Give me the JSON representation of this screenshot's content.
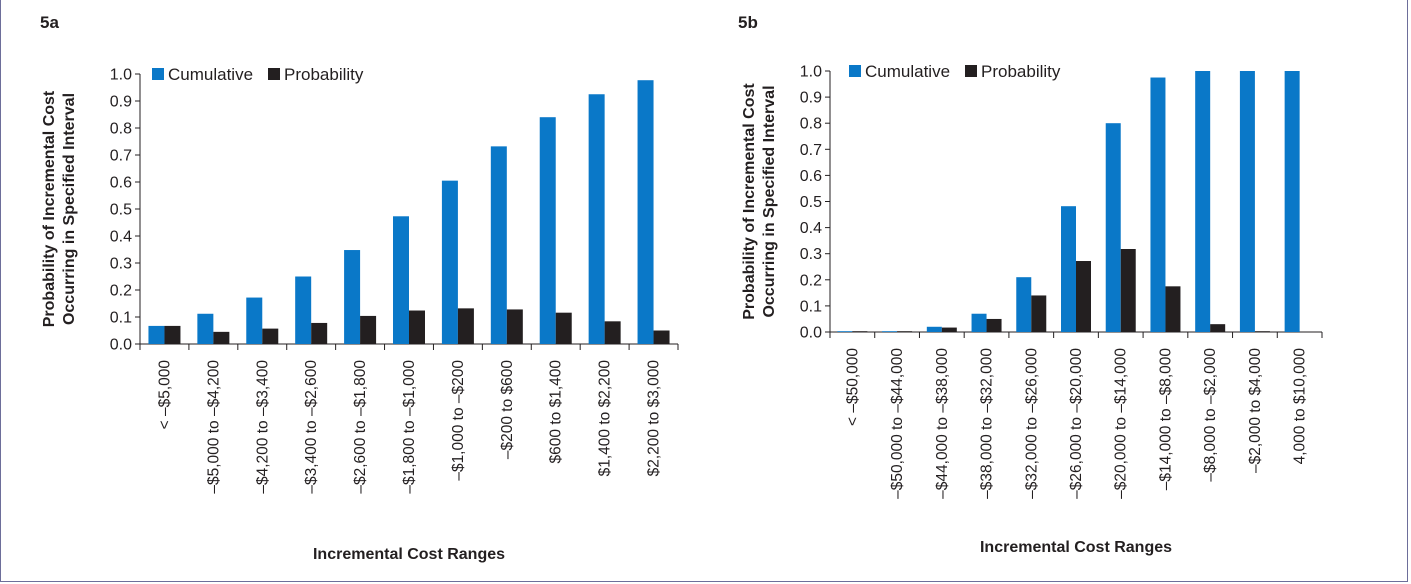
{
  "colors": {
    "cumulative": "#0a78c8",
    "probability": "#231f20",
    "axis": "#231f20"
  },
  "chart_data": [
    {
      "type": "bar",
      "panel_label": "5a",
      "title": "",
      "xlabel": "Incremental Cost Ranges",
      "ylabel_line1": "Probability of Incremental Cost",
      "ylabel_line2": "Occurring in Specified Interval",
      "ylim": [
        0,
        1.0
      ],
      "yticks": [
        "0.0",
        "0.1",
        "0.2",
        "0.3",
        "0.4",
        "0.5",
        "0.6",
        "0.7",
        "0.8",
        "0.9",
        "1.0"
      ],
      "legend_position": "top-left",
      "categories": [
        "< –$5,000",
        "–$5,000 to –$4,200",
        "–$4,200 to –$3,400",
        "–$3,400 to –$2,600",
        "–$2,600 to –$1,800",
        "–$1,800 to –$1,000",
        "–$1,000 to –$200",
        "–$200 to $600",
        "$600 to $1,400",
        "$1,400 to $2,200",
        "$2,200 to $3,000"
      ],
      "series": [
        {
          "name": "Cumulative",
          "values": [
            0.067,
            0.112,
            0.172,
            0.25,
            0.348,
            0.473,
            0.605,
            0.732,
            0.84,
            0.925,
            0.977
          ]
        },
        {
          "name": "Probability",
          "values": [
            0.067,
            0.045,
            0.057,
            0.078,
            0.104,
            0.124,
            0.132,
            0.128,
            0.116,
            0.084,
            0.05
          ]
        }
      ]
    },
    {
      "type": "bar",
      "panel_label": "5b",
      "title": "",
      "xlabel": "Incremental Cost Ranges",
      "ylabel_line1": "Probability of Incremental Cost",
      "ylabel_line2": "Occurring in Specified Interval",
      "ylim": [
        0,
        1.0
      ],
      "yticks": [
        "0.0",
        "0.1",
        "0.2",
        "0.3",
        "0.4",
        "0.5",
        "0.6",
        "0.7",
        "0.8",
        "0.9",
        "1.0"
      ],
      "legend_position": "top-left",
      "categories": [
        "< –$50,000",
        "–$50,000 to –$44,000",
        "–$44,000 to –$38,000",
        "–$38,000 to –$32,000",
        "–$32,000 to –$26,000",
        "–$26,000 to –$20,000",
        "–$20,000 to –$14,000",
        "–$14,000 to –$8,000",
        "–$8,000 to –$2,000",
        "–$2,000 to $4,000",
        "4,000 to $10,000"
      ],
      "series": [
        {
          "name": "Cumulative",
          "values": [
            0.002,
            0.003,
            0.02,
            0.07,
            0.21,
            0.482,
            0.8,
            0.975,
            1.0,
            1.0,
            1.0
          ]
        },
        {
          "name": "Probability",
          "values": [
            0.002,
            0.002,
            0.017,
            0.05,
            0.14,
            0.272,
            0.318,
            0.175,
            0.03,
            0.002,
            0.0
          ]
        }
      ]
    }
  ]
}
